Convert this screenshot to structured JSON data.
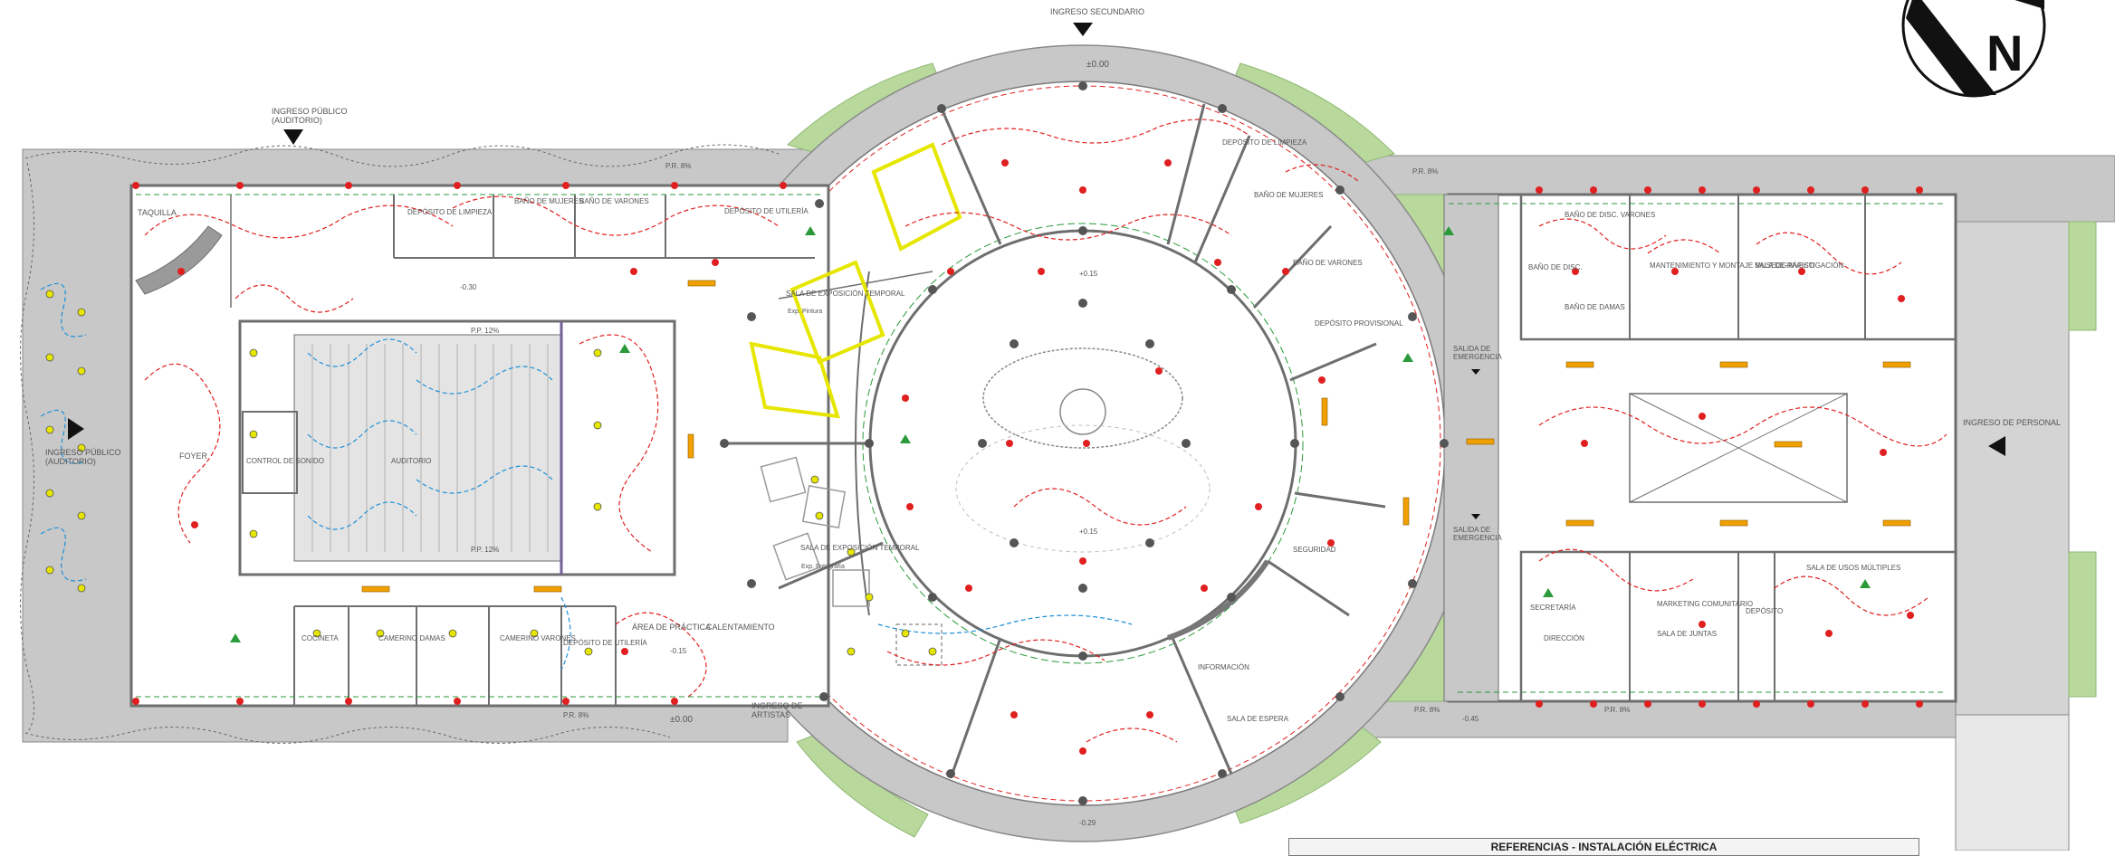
{
  "entrances": {
    "secondary": "INGRESO SECUNDARIO",
    "public_line1": "INGRESO PÚBLICO",
    "public_line2": "(AUDITORIO)",
    "public_east_line1": "INGRESO PÚBLICO",
    "public_east_line2": "(AUDITORIO)",
    "artists_line1": "INGRESO DE",
    "artists_line2": "ARTISTAS",
    "staff": "INGRESO DE PERSONAL",
    "emergency_exit_1_line1": "SALIDA DE",
    "emergency_exit_1_line2": "EMERGENCIA",
    "emergency_exit_2_line1": "SALIDA DE",
    "emergency_exit_2_line2": "EMERGENCIA"
  },
  "rooms": {
    "taquilla": "TAQUILLA",
    "deposito_limpieza_w": "DEPÓSITO DE LIMPIEZA",
    "bano_mujeres_w": "BAÑO DE MUJERES",
    "bano_varones_w": "BAÑO DE VARONES",
    "deposito_utileria_w": "DEPÓSITO DE UTILERÍA",
    "foyer": "FOYER",
    "control_sonido": "CONTROL DE SONIDO",
    "auditorio": "AUDITORIO",
    "cocineta": "COCINETA",
    "camerino_damas": "CAMERINO DAMAS",
    "camerino_varones": "CAMERINO VARONES",
    "deposito_utileria_s": "DEPÓSITO DE UTILERÍA",
    "area_practica": "ÁREA DE PRÁCTICA",
    "calentamiento": "CALENTAMIENTO",
    "sala_expo_temporal_1": "SALA DE EXPOSICIÓN TEMPORAL",
    "sala_expo_temporal_1_sub": "Exp. Pintura",
    "sala_expo_temporal_2": "SALA DE EXPOSICIÓN TEMPORAL",
    "sala_expo_temporal_2_sub": "Exp. Fotografía",
    "deposito_limpieza_c": "DEPÓSITO DE LIMPIEZA",
    "bano_mujeres_c": "BAÑO DE MUJERES",
    "bano_varones_c": "BAÑO DE VARONES",
    "deposito_provisional": "DEPÓSITO PROVISIONAL",
    "seguridad": "SEGURIDAD",
    "informacion": "INFORMACIÓN",
    "sala_espera": "SALA DE ESPERA",
    "bano_discapacitados": "BAÑO DE DISC. VARONES",
    "bano_disc": "BAÑO DE DISC.",
    "bano_damas_e": "BAÑO DE DAMAS",
    "mantenimiento": "MANTENIMIENTO Y MONTAJE MUSEOGRÁFICO",
    "sala_investigacion": "SALA DE INVESTIGACIÓN",
    "secretaria": "SECRETARÍA",
    "direccion": "DIRECCIÓN",
    "marketing": "MARKETING COMUNITARIO",
    "sala_juntas": "SALA DE JUNTAS",
    "deposito_e": "DEPÓSITO",
    "sala_usos_multiples": "SALA DE USOS MÚLTIPLES"
  },
  "levels": {
    "n000_top": "±0.00",
    "n000_bottom": "±0.00",
    "n_030": "-0.30",
    "n_015": "-0.15",
    "n_045": "-0.45",
    "n_015b": "+0.15",
    "n_016": "+0.15",
    "n_029": "-0.29",
    "ramp_1": "P.R. 8%",
    "ramp_2": "P.R. 8%",
    "ramp_3": "P.R. 8%",
    "ramp_4": "P.R. 8%",
    "ramp_5": "P.R. 8%",
    "slope_1": "P.P. 12%",
    "slope_2": "P.P. 12%"
  },
  "legend": {
    "title": "REFERENCIAS - INSTALACIÓN ELÉCTRICA"
  },
  "north": {
    "letter": "N"
  },
  "colors": {
    "wall": "#9a9a9a",
    "wall_dark": "#6e6e6e",
    "outer_ring": "#c8c8c8",
    "green_area": "#b8d99b",
    "circuit_red": "#e02020",
    "circuit_blue": "#1e90d8",
    "circuit_green": "#2a9a3a",
    "highlight_yellow": "#e6e600",
    "column": "#555555"
  }
}
